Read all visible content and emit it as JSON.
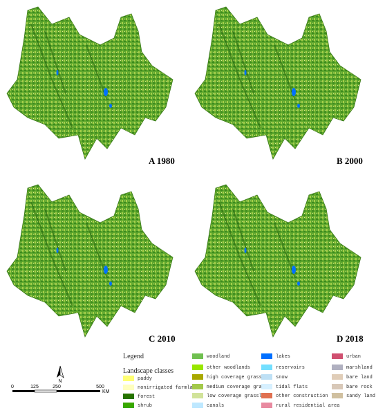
{
  "panels": [
    {
      "label": "A 1980"
    },
    {
      "label": "B 2000"
    },
    {
      "label": "C 2010"
    },
    {
      "label": "D 2018"
    }
  ],
  "legend": {
    "title": "Legend",
    "subtitle": "Landscape classes",
    "items": [
      {
        "name": "paddy",
        "color": "#ffff73"
      },
      {
        "name": "nonirrigated farmland",
        "color": "#ffffbe"
      },
      {
        "name": "forest",
        "color": "#267300"
      },
      {
        "name": "shrub",
        "color": "#38a800"
      },
      {
        "name": "woodland",
        "color": "#70c050"
      },
      {
        "name": "other woodlands",
        "color": "#98e600"
      },
      {
        "name": "high coverage grass",
        "color": "#a8a800"
      },
      {
        "name": "medium coverage grass",
        "color": "#a3c94a"
      },
      {
        "name": "low coverage grassland",
        "color": "#d1e39a"
      },
      {
        "name": "canals",
        "color": "#bee8ff"
      },
      {
        "name": "lakes",
        "color": "#0070ff"
      },
      {
        "name": "reservoirs",
        "color": "#73dfff"
      },
      {
        "name": "snow",
        "color": "#bee0f5"
      },
      {
        "name": "tidal flats",
        "color": "#d7f0ff"
      },
      {
        "name": "other construction land",
        "color": "#e07050"
      },
      {
        "name": "rural residential area",
        "color": "#e88aa0"
      },
      {
        "name": "urban",
        "color": "#d05070"
      },
      {
        "name": "marshland",
        "color": "#b0b0c0"
      },
      {
        "name": "bare land",
        "color": "#e0cdb8"
      },
      {
        "name": "bare rock",
        "color": "#d8c8b8"
      },
      {
        "name": "sandy land",
        "color": "#d0c0a0"
      }
    ]
  },
  "north_arrow": {
    "label": "N"
  },
  "scale_bar": {
    "labels": [
      "0",
      "125",
      "250",
      "500"
    ],
    "unit": "KM"
  }
}
